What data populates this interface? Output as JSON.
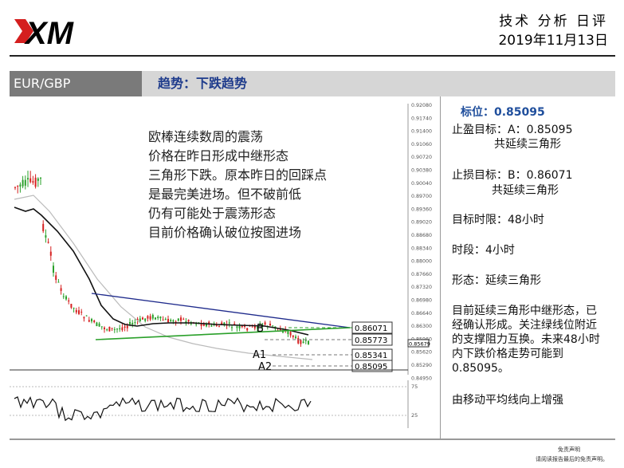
{
  "header": {
    "logo_text": "XM",
    "title": "技术 分析 日评",
    "date": "2019年11月13日"
  },
  "bar": {
    "pair": "EUR/GBP",
    "trend": "趋势：下跌趋势"
  },
  "note_lines": [
    "欧棒连续数周的震荡",
    "价格在昨日形成中继形态",
    "三角形下跌。原本昨日的回踩点",
    "是最完美进场。但不破前低",
    "仍有可能处于震荡形态",
    "目前价格确认破位按图进场"
  ],
  "right_panel": {
    "target_price": "标位：0.85095",
    "tp_line1": "止盈目标：A：0.85095",
    "tp_line2": "共延续三角形",
    "sl_line1": "止损目标：B：0.86071",
    "sl_line2": "共延续三角形",
    "time_limit": "目标时限：48小时",
    "timeframe": "时段：4小时",
    "pattern": "形态：延续三角形",
    "desc_lines": [
      "目前延续三角形中继形态，已",
      "经确认形成。关注绿线位附近",
      "的支撑阻力互换。未来48小时",
      "内下跌价格走势可能到",
      "0.85095。"
    ],
    "ma_note": "由移动平均线向上增强"
  },
  "chart_data": {
    "type": "line",
    "y_ticks": [
      "0.92080",
      "0.91740",
      "0.91400",
      "0.91060",
      "0.90720",
      "0.90380",
      "0.90040",
      "0.89700",
      "0.89360",
      "0.89020",
      "0.88680",
      "0.88340",
      "0.88000",
      "0.87660",
      "0.87320",
      "0.86980",
      "0.86640",
      "0.86300",
      "0.85960",
      "0.85620",
      "0.85290",
      "0.84950"
    ],
    "current_price_tag": "0.85679",
    "levels": [
      {
        "label": "B",
        "value": "0.86071",
        "color": "#2aa02a"
      },
      {
        "label": "",
        "value": "0.85773",
        "color": "#777777"
      },
      {
        "label": "A1",
        "value": "0.85341",
        "color": "#777777"
      },
      {
        "label": "A2",
        "value": "0.85095",
        "color": "#777777"
      }
    ],
    "osc_ticks": [
      "75",
      "25"
    ],
    "colors": {
      "bull": "#2aa02a",
      "bear": "#d62020",
      "ma": "#111111",
      "ma_slow": "#bbbbbb",
      "resistance": "#1f2b8c",
      "support": "#2aa02a"
    }
  },
  "footer": {
    "line1": "免责声明",
    "line2": "请阅读报告最后的免责声明。"
  }
}
